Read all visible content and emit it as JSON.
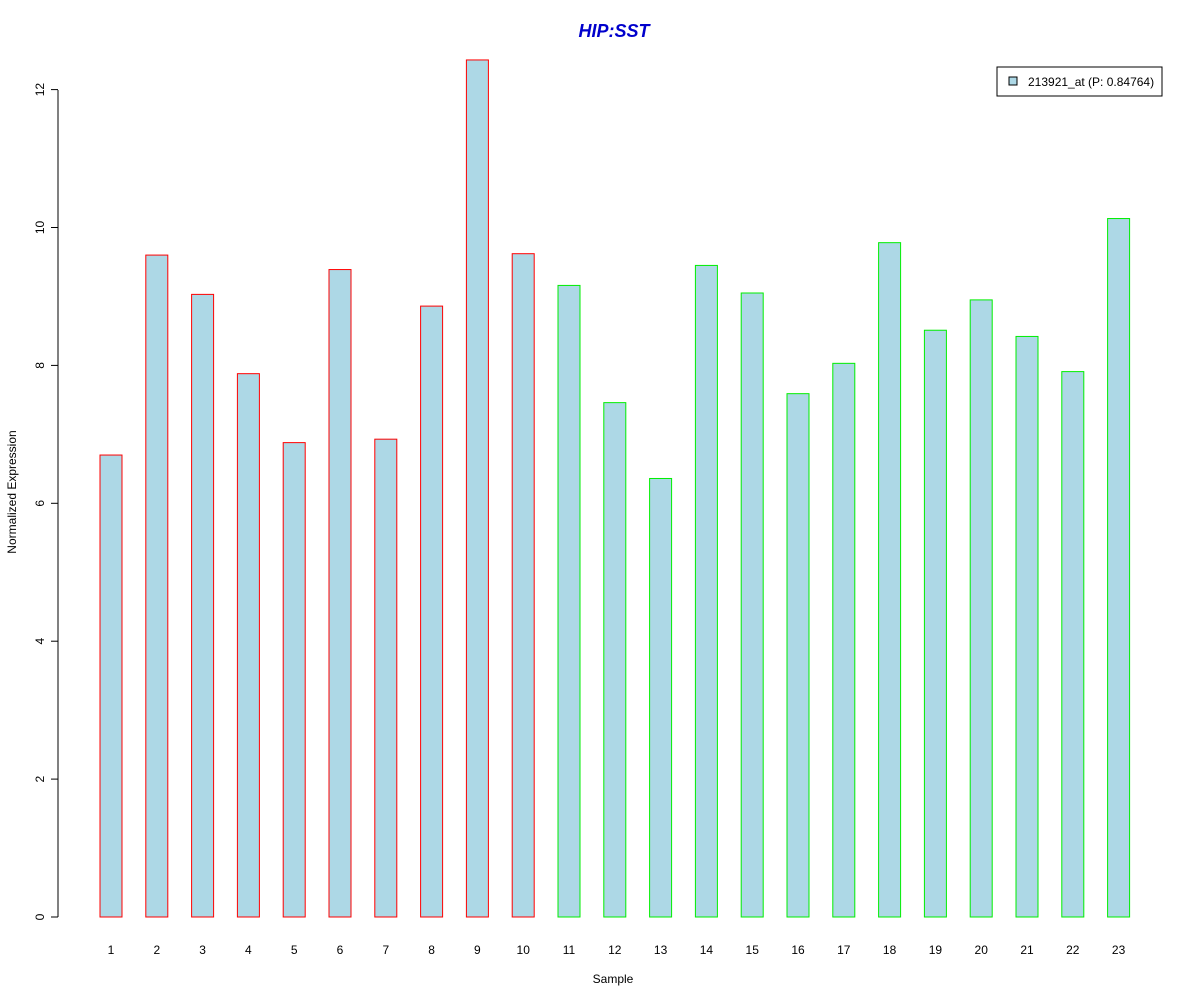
{
  "colors": {
    "title": "#0000cc",
    "bar_fill": "#add8e6",
    "group1_border": "#ff0000",
    "group2_border": "#00ee00",
    "axis": "#000000"
  },
  "chart_data": {
    "type": "bar",
    "title": "HIP:SST",
    "xlabel": "Sample",
    "ylabel": "Normalized Expression",
    "ylim": [
      0,
      12.5
    ],
    "yticks": [
      "0",
      "2",
      "4",
      "6",
      "8",
      "10",
      "12"
    ],
    "grid": false,
    "legend_position": "top-right",
    "categories": [
      "1",
      "2",
      "3",
      "4",
      "5",
      "6",
      "7",
      "8",
      "9",
      "10",
      "11",
      "12",
      "13",
      "14",
      "15",
      "16",
      "17",
      "18",
      "19",
      "20",
      "21",
      "22",
      "23"
    ],
    "series": [
      {
        "name": "213921_at (P: 0.84764)",
        "values": [
          6.7,
          9.6,
          9.03,
          7.88,
          6.88,
          9.39,
          6.93,
          8.86,
          12.43,
          9.62,
          9.16,
          7.46,
          6.36,
          9.45,
          9.05,
          7.59,
          8.03,
          9.78,
          8.51,
          8.95,
          8.42,
          7.91,
          10.13
        ]
      }
    ],
    "groups": [
      1,
      1,
      1,
      1,
      1,
      1,
      1,
      1,
      1,
      1,
      2,
      2,
      2,
      2,
      2,
      2,
      2,
      2,
      2,
      2,
      2,
      2,
      2
    ]
  }
}
